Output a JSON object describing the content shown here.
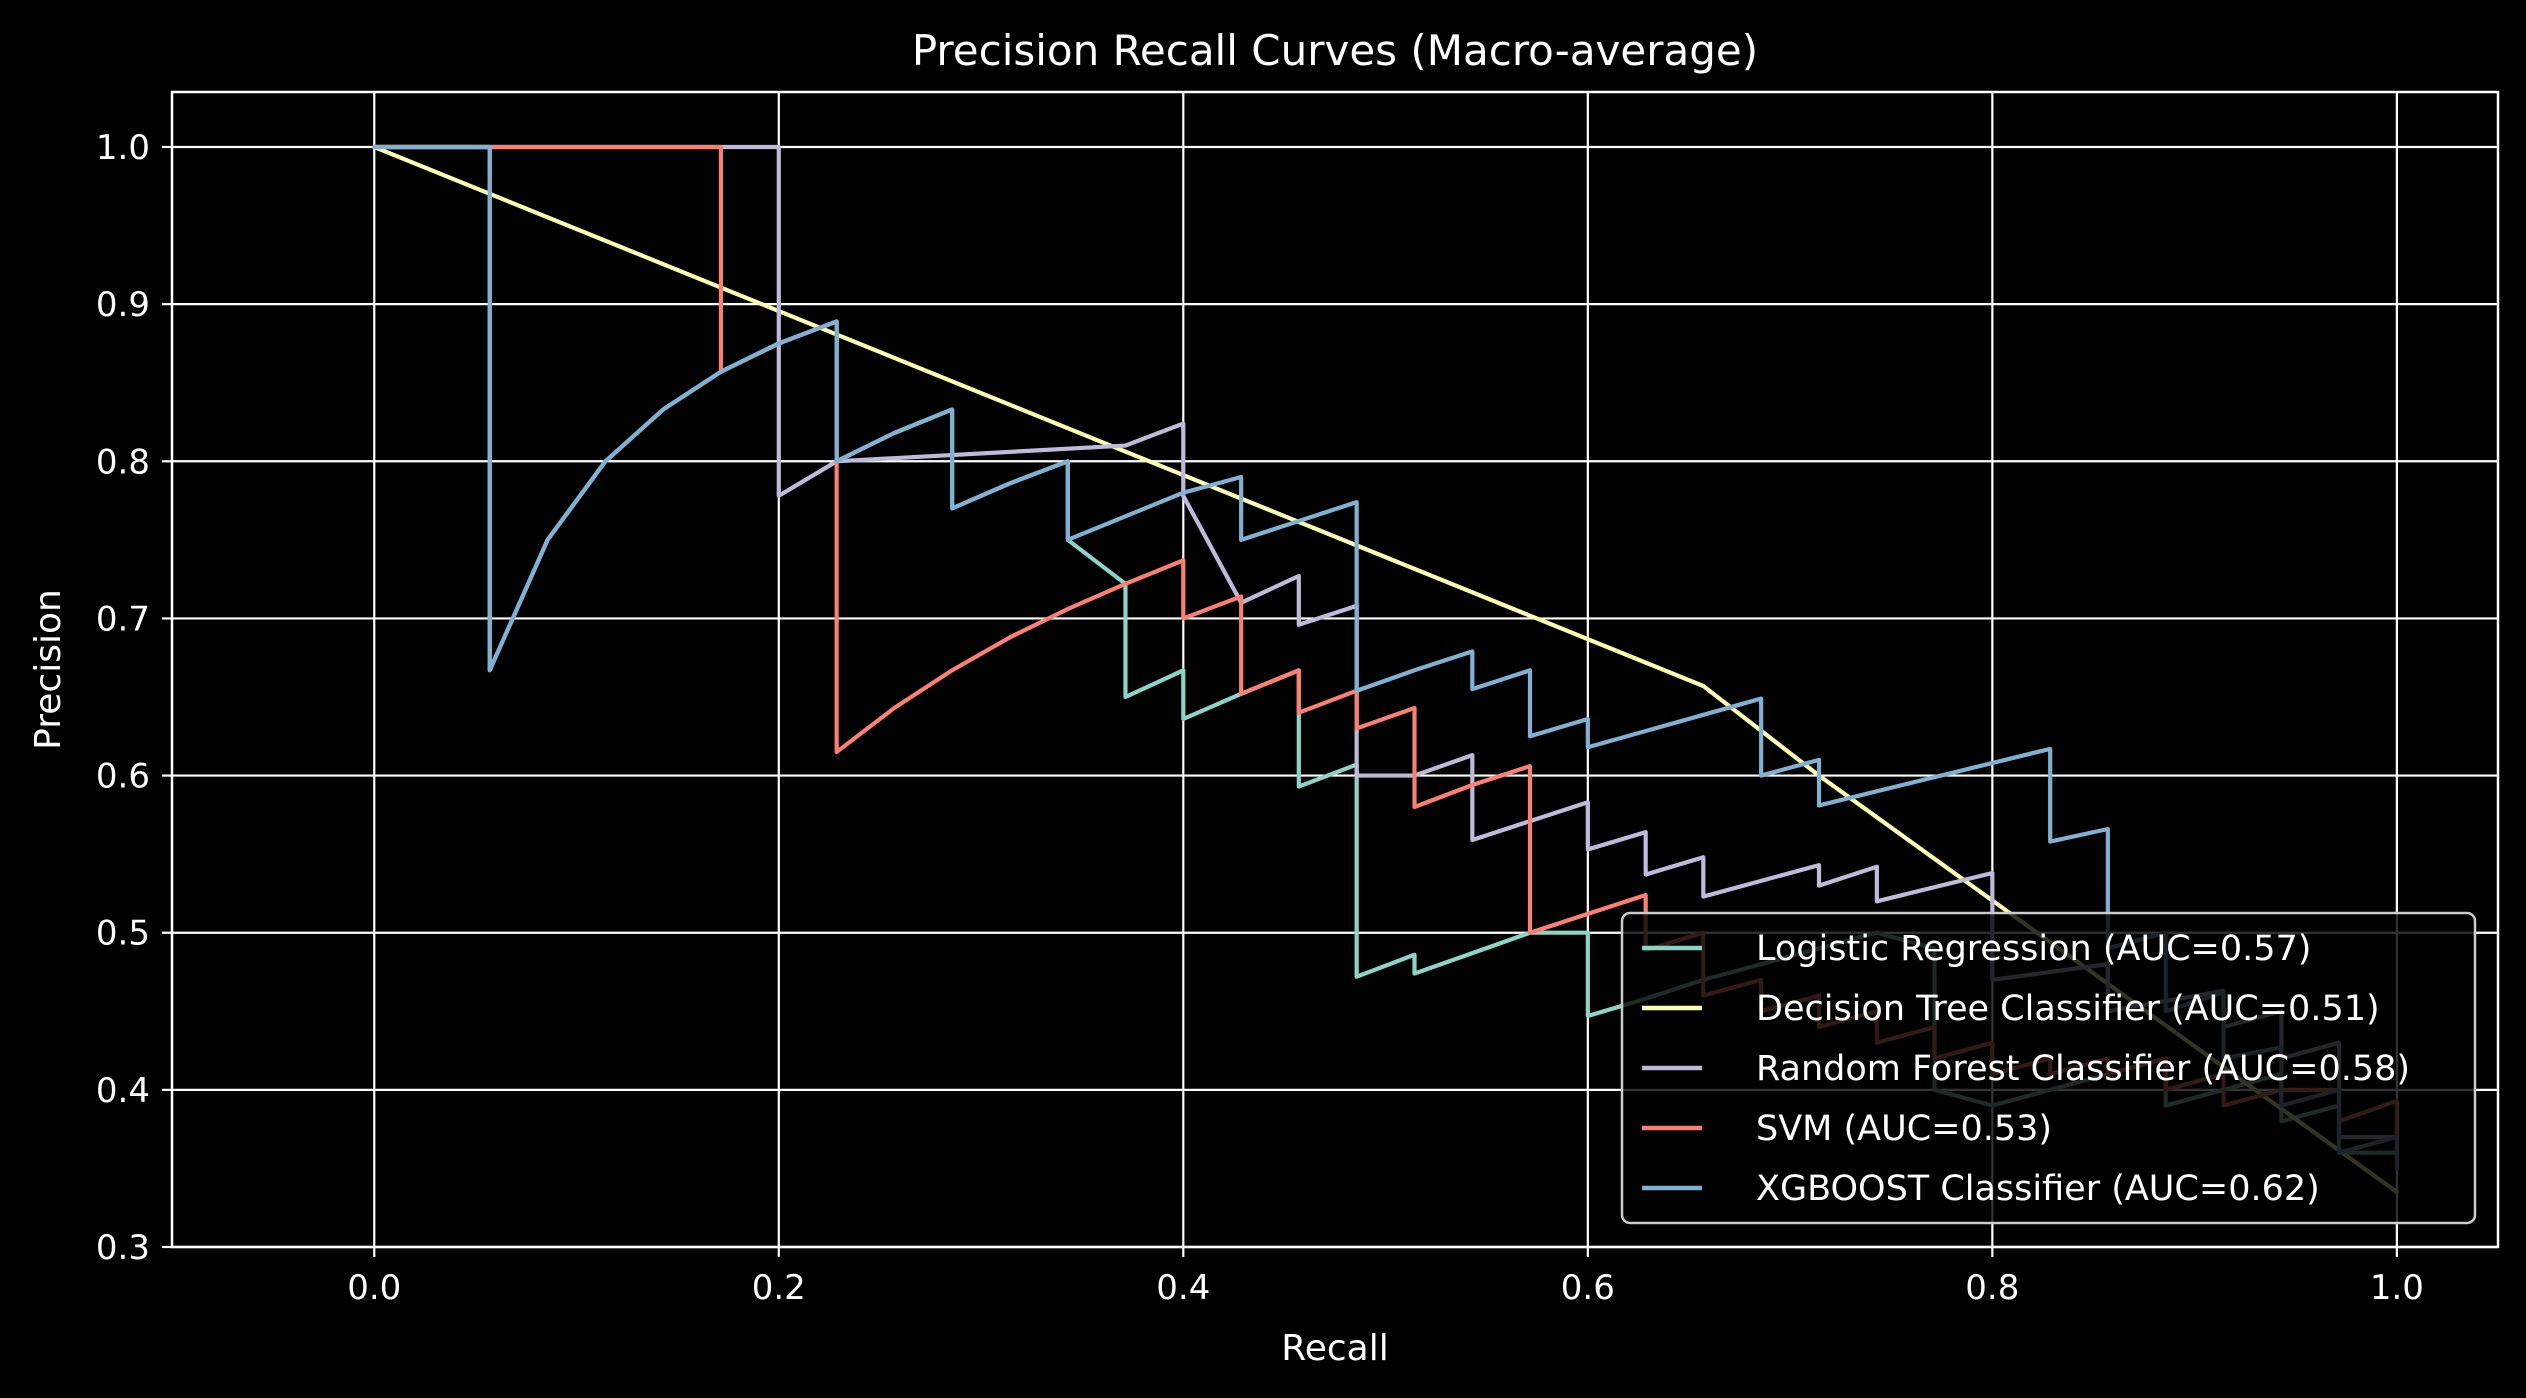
{
  "chart_data": {
    "type": "line",
    "title": "Precision Recall Curves (Macro-average)",
    "xlabel": "Recall",
    "ylabel": "Precision",
    "xlim": [
      -0.1,
      1.05
    ],
    "ylim": [
      0.3,
      1.035
    ],
    "grid": true,
    "legend_position": "lower-right",
    "xticks": [
      0.0,
      0.2,
      0.4,
      0.6,
      0.8,
      1.0
    ],
    "xtick_labels": [
      "0.0",
      "0.2",
      "0.4",
      "0.6",
      "0.8",
      "1.0"
    ],
    "yticks": [
      0.3,
      0.4,
      0.5,
      0.6,
      0.7,
      0.8,
      0.9,
      1.0
    ],
    "ytick_labels": [
      "0.3",
      "0.4",
      "0.5",
      "0.6",
      "0.7",
      "0.8",
      "0.9",
      "1.0"
    ],
    "colors": {
      "background": "#000000",
      "grid": "#ffffff",
      "axes": "#ffffff",
      "text": "#ffffff"
    },
    "series": [
      {
        "name": "Logistic Regression (AUC=0.57)",
        "color": "#8dd3c7",
        "points": [
          [
            0.0,
            1.0
          ],
          [
            0.0571,
            1.0
          ],
          [
            0.0571,
            0.667
          ],
          [
            0.0857,
            0.75
          ],
          [
            0.1143,
            0.8
          ],
          [
            0.1429,
            0.833
          ],
          [
            0.1714,
            0.857
          ],
          [
            0.2,
            0.875
          ],
          [
            0.2286,
            0.889
          ],
          [
            0.2286,
            0.8
          ],
          [
            0.2571,
            0.818
          ],
          [
            0.2857,
            0.833
          ],
          [
            0.2857,
            0.77
          ],
          [
            0.3143,
            0.786
          ],
          [
            0.3429,
            0.8
          ],
          [
            0.3429,
            0.75
          ],
          [
            0.3714,
            0.722
          ],
          [
            0.3714,
            0.65
          ],
          [
            0.4,
            0.667
          ],
          [
            0.4,
            0.636
          ],
          [
            0.4286,
            0.652
          ],
          [
            0.4571,
            0.667
          ],
          [
            0.4571,
            0.593
          ],
          [
            0.4857,
            0.607
          ],
          [
            0.4857,
            0.472
          ],
          [
            0.5143,
            0.486
          ],
          [
            0.5143,
            0.474
          ],
          [
            0.5429,
            0.487
          ],
          [
            0.5714,
            0.5
          ],
          [
            0.6,
            0.5
          ],
          [
            0.6,
            0.447
          ],
          [
            0.6286,
            0.458
          ],
          [
            0.6571,
            0.47
          ],
          [
            0.6857,
            0.48
          ],
          [
            0.7143,
            0.49
          ],
          [
            0.7429,
            0.5
          ],
          [
            0.7714,
            0.49
          ],
          [
            0.7714,
            0.4
          ],
          [
            0.8,
            0.39
          ],
          [
            0.8286,
            0.4
          ],
          [
            0.8571,
            0.41
          ],
          [
            0.8857,
            0.42
          ],
          [
            0.8857,
            0.39
          ],
          [
            0.9143,
            0.4
          ],
          [
            0.9429,
            0.41
          ],
          [
            0.9429,
            0.38
          ],
          [
            0.9714,
            0.39
          ],
          [
            0.9714,
            0.36
          ],
          [
            1.0,
            0.36
          ]
        ]
      },
      {
        "name": "Decision Tree Classifier (AUC=0.51)",
        "color": "#ffffb3",
        "points": [
          [
            0.0,
            1.0
          ],
          [
            0.6571,
            0.657
          ],
          [
            0.7143,
            0.6
          ],
          [
            1.0,
            0.335
          ]
        ]
      },
      {
        "name": "Random Forest Classifier (AUC=0.58)",
        "color": "#bebada",
        "points": [
          [
            0.0,
            1.0
          ],
          [
            0.2,
            1.0
          ],
          [
            0.2,
            0.778
          ],
          [
            0.2286,
            0.8
          ],
          [
            0.3714,
            0.81
          ],
          [
            0.4,
            0.824
          ],
          [
            0.4,
            0.778
          ],
          [
            0.4286,
            0.71
          ],
          [
            0.4571,
            0.727
          ],
          [
            0.4571,
            0.696
          ],
          [
            0.4857,
            0.708
          ],
          [
            0.4857,
            0.6
          ],
          [
            0.5143,
            0.6
          ],
          [
            0.5429,
            0.613
          ],
          [
            0.5429,
            0.559
          ],
          [
            0.5714,
            0.571
          ],
          [
            0.6,
            0.583
          ],
          [
            0.6,
            0.553
          ],
          [
            0.6286,
            0.564
          ],
          [
            0.6286,
            0.537
          ],
          [
            0.6571,
            0.548
          ],
          [
            0.6571,
            0.523
          ],
          [
            0.7143,
            0.543
          ],
          [
            0.7143,
            0.53
          ],
          [
            0.7429,
            0.542
          ],
          [
            0.7429,
            0.52
          ],
          [
            0.8,
            0.538
          ],
          [
            0.8,
            0.47
          ],
          [
            0.8571,
            0.48
          ],
          [
            0.8571,
            0.45
          ],
          [
            0.9143,
            0.463
          ],
          [
            0.9143,
            0.44
          ],
          [
            0.9429,
            0.45
          ],
          [
            0.9429,
            0.42
          ],
          [
            0.9714,
            0.43
          ],
          [
            0.9714,
            0.37
          ],
          [
            1.0,
            0.37
          ]
        ]
      },
      {
        "name": "SVM (AUC=0.53)",
        "color": "#fb8072",
        "points": [
          [
            0.0,
            1.0
          ],
          [
            0.0571,
            1.0
          ],
          [
            0.1714,
            1.0
          ],
          [
            0.1714,
            0.857
          ],
          [
            0.2,
            0.875
          ],
          [
            0.2286,
            0.889
          ],
          [
            0.2286,
            0.615
          ],
          [
            0.2571,
            0.643
          ],
          [
            0.2857,
            0.667
          ],
          [
            0.3143,
            0.688
          ],
          [
            0.3429,
            0.706
          ],
          [
            0.3714,
            0.722
          ],
          [
            0.4,
            0.737
          ],
          [
            0.4,
            0.7
          ],
          [
            0.4286,
            0.714
          ],
          [
            0.4286,
            0.652
          ],
          [
            0.4571,
            0.667
          ],
          [
            0.4571,
            0.64
          ],
          [
            0.4857,
            0.654
          ],
          [
            0.4857,
            0.63
          ],
          [
            0.5143,
            0.643
          ],
          [
            0.5143,
            0.58
          ],
          [
            0.5429,
            0.594
          ],
          [
            0.5714,
            0.606
          ],
          [
            0.5714,
            0.5
          ],
          [
            0.6,
            0.512
          ],
          [
            0.6286,
            0.524
          ],
          [
            0.6286,
            0.489
          ],
          [
            0.6571,
            0.5
          ],
          [
            0.6571,
            0.46
          ],
          [
            0.6857,
            0.47
          ],
          [
            0.6857,
            0.45
          ],
          [
            0.7143,
            0.46
          ],
          [
            0.7143,
            0.44
          ],
          [
            0.7429,
            0.45
          ],
          [
            0.7429,
            0.43
          ],
          [
            0.7714,
            0.44
          ],
          [
            0.7714,
            0.42
          ],
          [
            0.8,
            0.43
          ],
          [
            0.8,
            0.41
          ],
          [
            0.8286,
            0.42
          ],
          [
            0.8286,
            0.41
          ],
          [
            0.8571,
            0.42
          ],
          [
            0.8571,
            0.41
          ],
          [
            0.8857,
            0.42
          ],
          [
            0.8857,
            0.4
          ],
          [
            0.9143,
            0.41
          ],
          [
            0.9143,
            0.39
          ],
          [
            0.9429,
            0.4
          ],
          [
            0.9714,
            0.4
          ],
          [
            0.9714,
            0.38
          ],
          [
            1.0,
            0.393
          ],
          [
            1.0,
            0.37
          ]
        ]
      },
      {
        "name": "XGBOOST Classifier (AUC=0.62)",
        "color": "#80b1d3",
        "points": [
          [
            0.0,
            1.0
          ],
          [
            0.0571,
            1.0
          ],
          [
            0.0571,
            0.667
          ],
          [
            0.0857,
            0.75
          ],
          [
            0.1143,
            0.8
          ],
          [
            0.1429,
            0.833
          ],
          [
            0.1714,
            0.857
          ],
          [
            0.2,
            0.875
          ],
          [
            0.2286,
            0.889
          ],
          [
            0.2286,
            0.8
          ],
          [
            0.2571,
            0.818
          ],
          [
            0.2857,
            0.833
          ],
          [
            0.2857,
            0.77
          ],
          [
            0.3143,
            0.786
          ],
          [
            0.3429,
            0.8
          ],
          [
            0.3429,
            0.75
          ],
          [
            0.4,
            0.78
          ],
          [
            0.4286,
            0.79
          ],
          [
            0.4286,
            0.75
          ],
          [
            0.4857,
            0.774
          ],
          [
            0.4857,
            0.654
          ],
          [
            0.5143,
            0.667
          ],
          [
            0.5429,
            0.679
          ],
          [
            0.5429,
            0.655
          ],
          [
            0.5714,
            0.667
          ],
          [
            0.5714,
            0.625
          ],
          [
            0.6,
            0.636
          ],
          [
            0.6,
            0.618
          ],
          [
            0.6857,
            0.649
          ],
          [
            0.6857,
            0.6
          ],
          [
            0.7143,
            0.61
          ],
          [
            0.7143,
            0.581
          ],
          [
            0.8286,
            0.617
          ],
          [
            0.8286,
            0.558
          ],
          [
            0.8571,
            0.566
          ],
          [
            0.8571,
            0.49
          ],
          [
            0.8857,
            0.5
          ],
          [
            0.8857,
            0.45
          ],
          [
            0.9143,
            0.462
          ],
          [
            0.9143,
            0.42
          ],
          [
            0.9429,
            0.427
          ],
          [
            0.9429,
            0.39
          ],
          [
            0.9714,
            0.4
          ],
          [
            0.9714,
            0.36
          ],
          [
            1.0,
            0.37
          ],
          [
            1.0,
            0.35
          ]
        ]
      }
    ]
  }
}
